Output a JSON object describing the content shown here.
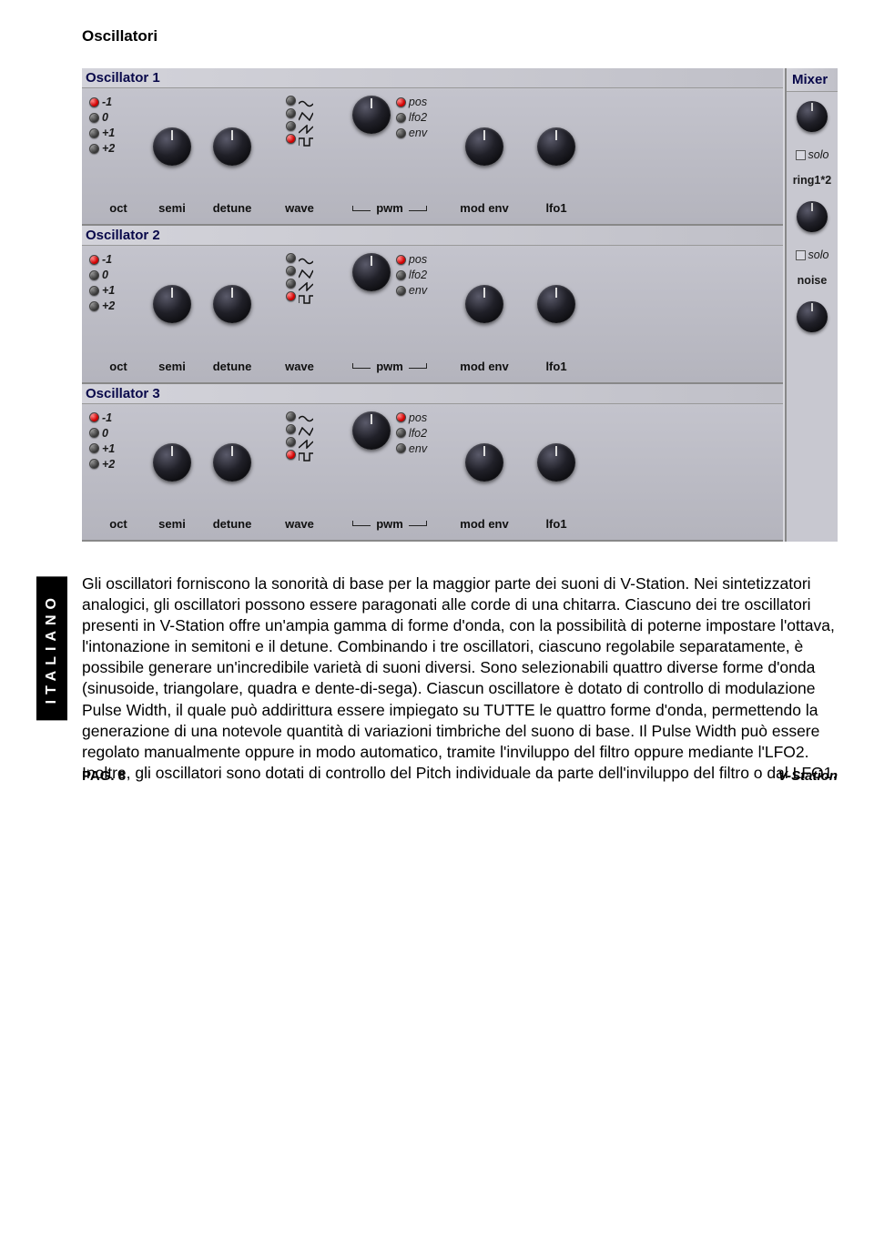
{
  "title": "Oscillatori",
  "sideTab": "ITALIANO",
  "footer": {
    "page": "PAG. 8",
    "product": "V-Station"
  },
  "synth": {
    "mixer": {
      "header": "Mixer",
      "solo1": "solo",
      "ring": "ring1*2",
      "solo2": "solo",
      "noise": "noise"
    },
    "oscLabels": {
      "oct": "oct",
      "semi": "semi",
      "detune": "detune",
      "wave": "wave",
      "pwm": "pwm",
      "modenv": "mod env",
      "lfo1": "lfo1"
    },
    "octOptions": [
      {
        "label": "-1",
        "on": true
      },
      {
        "label": "0",
        "on": false
      },
      {
        "label": "+1",
        "on": false
      },
      {
        "label": "+2",
        "on": false
      }
    ],
    "waveOptions": [
      {
        "glyph": "sine",
        "on": false
      },
      {
        "glyph": "tri",
        "on": false
      },
      {
        "glyph": "saw",
        "on": false
      },
      {
        "glyph": "square",
        "on": true
      }
    ],
    "pwmOptions": [
      {
        "label": "pos",
        "on": true
      },
      {
        "label": "lfo2",
        "on": false
      },
      {
        "label": "env",
        "on": false
      }
    ],
    "oscillators": [
      {
        "name": "Oscillator 1"
      },
      {
        "name": "Oscillator 2"
      },
      {
        "name": "Oscillator 3"
      }
    ]
  },
  "body": "Gli oscillatori forniscono la sonorità di base per la maggior parte dei suoni di V-Station. Nei sintetizzatori analogici, gli oscillatori possono essere paragonati alle corde di una chitarra. Ciascuno dei tre oscillatori presenti in V-Station offre un'ampia gamma di forme d'onda, con la possibilità di poterne impostare l'ottava, l'intonazione in semitoni e il detune. Combinando i tre oscillatori, ciascuno regolabile separatamente, è possibile generare un'incredibile varietà di suoni diversi. Sono selezionabili quattro diverse forme d'onda (sinusoide, triangolare, quadra e dente-di-sega). Ciascun oscillatore è dotato di controllo di modulazione Pulse Width, il quale può addirittura essere impiegato su TUTTE le quattro forme d'onda, permettendo la generazione di una notevole quantità di variazioni timbriche del suono di base. Il Pulse Width può essere regolato manualmente oppure in modo automatico, tramite l'inviluppo del filtro oppure mediante l'LFO2. Inoltre, gli oscillatori sono dotati di controllo del Pitch individuale da parte dell'inviluppo del filtro o dal LFO1."
}
